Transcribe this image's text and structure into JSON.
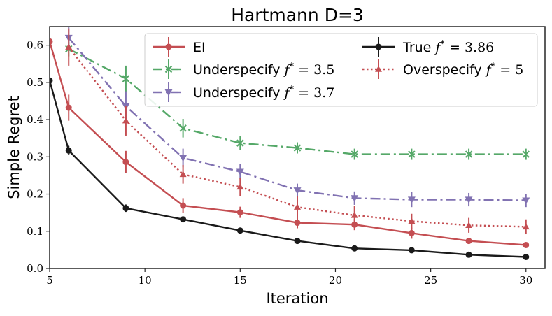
{
  "chart_data": {
    "type": "line",
    "title": "Hartmann D=3",
    "xlabel": "Iteration",
    "ylabel": "Simple Regret",
    "xlim": [
      5,
      31
    ],
    "ylim": [
      0,
      0.65
    ],
    "xticks": [
      5,
      10,
      15,
      20,
      25,
      30
    ],
    "yticks": [
      0.0,
      0.1,
      0.2,
      0.3,
      0.4,
      0.5,
      0.6
    ],
    "xtick_labels": [
      "5",
      "10",
      "15",
      "20",
      "25",
      "30"
    ],
    "ytick_labels": [
      "0.0",
      "0.1",
      "0.2",
      "0.3",
      "0.4",
      "0.5",
      "0.6"
    ],
    "grid": false,
    "legend_position": "top-right",
    "legend_columns": 2,
    "series": [
      {
        "name": "EI",
        "color": "#c44e52",
        "dash": "solid",
        "marker": "circle",
        "x": [
          5,
          6,
          9,
          12,
          15,
          18,
          21,
          24,
          27,
          30
        ],
        "values": [
          0.61,
          0.432,
          0.286,
          0.169,
          0.151,
          0.123,
          0.118,
          0.095,
          0.074,
          0.063
        ],
        "errors": [
          0,
          0.035,
          0.03,
          0.02,
          0.015,
          0.015,
          0.015,
          0.015,
          0.008,
          0.005
        ]
      },
      {
        "name": "Underspecify f* = 3.5",
        "color": "#55a868",
        "dash": "dashdot",
        "marker": "x",
        "x": [
          6,
          9,
          12,
          15,
          18,
          21,
          24,
          27,
          30
        ],
        "values": [
          0.59,
          0.51,
          0.377,
          0.337,
          0.324,
          0.307,
          0.307,
          0.307,
          0.307
        ],
        "errors": [
          0.02,
          0.035,
          0.025,
          0.018,
          0.015,
          0.015,
          0.015,
          0.015,
          0.015
        ]
      },
      {
        "name": "Underspecify f* = 3.7",
        "color": "#8172b2",
        "dash": "dashdot",
        "marker": "triangle-down",
        "x": [
          6,
          9,
          12,
          15,
          18,
          21,
          24,
          27,
          30
        ],
        "values": [
          0.62,
          0.436,
          0.297,
          0.26,
          0.21,
          0.189,
          0.185,
          0.185,
          0.183
        ],
        "errors": [
          0.03,
          0.04,
          0.025,
          0.02,
          0.018,
          0.018,
          0.02,
          0.018,
          0.018
        ]
      },
      {
        "name": "True f* = 3.86",
        "color": "#1a1a1a",
        "dash": "solid",
        "marker": "circle",
        "x": [
          5,
          6,
          9,
          12,
          15,
          18,
          21,
          24,
          27,
          30
        ],
        "values": [
          0.505,
          0.317,
          0.162,
          0.132,
          0.102,
          0.074,
          0.054,
          0.049,
          0.037,
          0.031
        ],
        "errors": [
          0,
          0.012,
          0.01,
          0.008,
          0.004,
          0.003,
          0.003,
          0.003,
          0.003,
          0.003
        ]
      },
      {
        "name": "Overspecify f* = 5",
        "color": "#c44e52",
        "dash": "dotted",
        "marker": "triangle-up",
        "x": [
          6,
          9,
          12,
          15,
          18,
          21,
          24,
          27,
          30
        ],
        "values": [
          0.595,
          0.397,
          0.253,
          0.219,
          0.165,
          0.143,
          0.127,
          0.116,
          0.112
        ],
        "errors": [
          0.05,
          0.04,
          0.025,
          0.025,
          0.03,
          0.025,
          0.02,
          0.02,
          0.02
        ]
      }
    ],
    "legend": [
      {
        "series": 0,
        "label": "EI"
      },
      {
        "series": 1,
        "label": "Underspecify f* = 3.5"
      },
      {
        "series": 2,
        "label": "Underspecify f* = 3.7"
      },
      {
        "series": 3,
        "label": "True f* = 3.86"
      },
      {
        "series": 4,
        "label": "Overspecify f* = 5"
      }
    ]
  }
}
